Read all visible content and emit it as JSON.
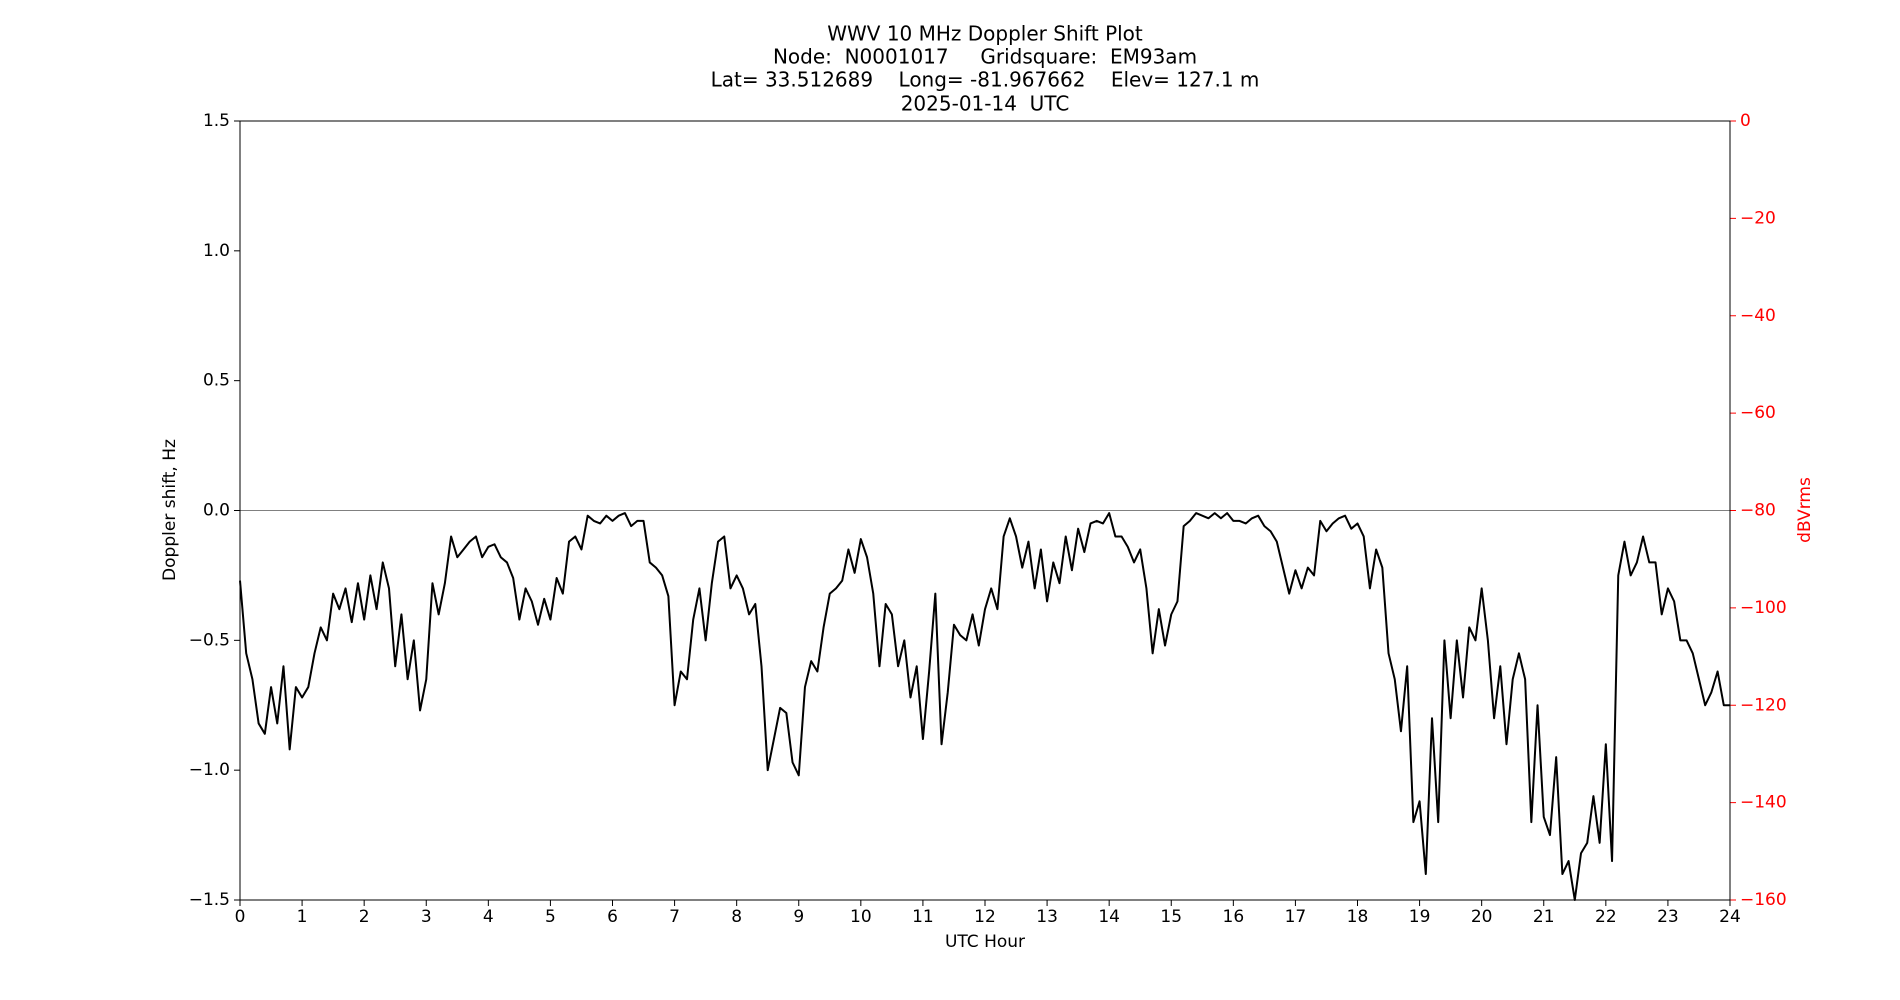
{
  "chart_data": {
    "type": "line",
    "title": [
      "WWV 10 MHz Doppler Shift Plot",
      "Node:  N0001017     Gridsquare:  EM93am",
      "Lat= 33.512689    Long= -81.967662    Elev= 127.1 m",
      "2025-01-14  UTC"
    ],
    "x_label": "UTC Hour",
    "y_label": "Doppler shift, Hz",
    "y2_label": "dBVrms",
    "color": "#000000",
    "y2_color": "#ff0000",
    "reference_line": 0,
    "reference_color": "#808080",
    "xlim": [
      0,
      24
    ],
    "xticks": [
      0,
      1,
      2,
      3,
      4,
      5,
      6,
      7,
      8,
      9,
      10,
      11,
      12,
      13,
      14,
      15,
      16,
      17,
      18,
      19,
      20,
      21,
      22,
      23,
      24
    ],
    "ylim": [
      -1.5,
      1.5
    ],
    "yticks": [
      {
        "value": -1.5,
        "label": "−1.5"
      },
      {
        "value": -1.0,
        "label": "−1.0"
      },
      {
        "value": -0.5,
        "label": "−0.5"
      },
      {
        "value": 0,
        "label": "0.0"
      },
      0.5,
      {
        "value": 1.0,
        "label": "1.0"
      },
      1.5
    ],
    "y2lim": [
      -160,
      0
    ],
    "y2ticks": [
      {
        "value": -160,
        "label": "−160"
      },
      {
        "value": -140,
        "label": "−140"
      },
      {
        "value": -120,
        "label": "−120"
      },
      {
        "value": -100,
        "label": "−100"
      },
      {
        "value": -80,
        "label": "−80"
      },
      {
        "value": -60,
        "label": "−60"
      },
      {
        "value": -40,
        "label": "−40"
      },
      {
        "value": -20,
        "label": "−20"
      },
      0
    ],
    "x": [
      0,
      0.1,
      0.2,
      0.3,
      0.4,
      0.5,
      0.6,
      0.7,
      0.8,
      0.9,
      1,
      1.1,
      1.2,
      1.3,
      1.4,
      1.5,
      1.6,
      1.7,
      1.8,
      1.9,
      2,
      2.1,
      2.2,
      2.3,
      2.4,
      2.5,
      2.6,
      2.7,
      2.8,
      2.9,
      3,
      3.1,
      3.2,
      3.3,
      3.4,
      3.5,
      3.6,
      3.7,
      3.8,
      3.9,
      4,
      4.1,
      4.2,
      4.3,
      4.4,
      4.5,
      4.6,
      4.7,
      4.8,
      4.9,
      5,
      5.1,
      5.2,
      5.3,
      5.4,
      5.5,
      5.6,
      5.7,
      5.8,
      5.9,
      6,
      6.1,
      6.2,
      6.3,
      6.4,
      6.5,
      6.6,
      6.7,
      6.8,
      6.9,
      7,
      7.1,
      7.2,
      7.3,
      7.4,
      7.5,
      7.6,
      7.7,
      7.8,
      7.9,
      8,
      8.1,
      8.2,
      8.3,
      8.4,
      8.5,
      8.6,
      8.7,
      8.8,
      8.9,
      9,
      9.1,
      9.2,
      9.3,
      9.4,
      9.5,
      9.6,
      9.7,
      9.8,
      9.9,
      10,
      10.1,
      10.2,
      10.3,
      10.4,
      10.5,
      10.6,
      10.7,
      10.8,
      10.9,
      11,
      11.1,
      11.2,
      11.3,
      11.4,
      11.5,
      11.6,
      11.7,
      11.8,
      11.9,
      12,
      12.1,
      12.2,
      12.3,
      12.4,
      12.5,
      12.6,
      12.7,
      12.8,
      12.9,
      13,
      13.1,
      13.2,
      13.3,
      13.4,
      13.5,
      13.6,
      13.7,
      13.8,
      13.9,
      14,
      14.1,
      14.2,
      14.3,
      14.4,
      14.5,
      14.6,
      14.7,
      14.8,
      14.9,
      15,
      15.1,
      15.2,
      15.3,
      15.4,
      15.5,
      15.6,
      15.7,
      15.8,
      15.9,
      16,
      16.1,
      16.2,
      16.3,
      16.4,
      16.5,
      16.6,
      16.7,
      16.8,
      16.9,
      17,
      17.1,
      17.2,
      17.3,
      17.4,
      17.5,
      17.6,
      17.7,
      17.8,
      17.9,
      18,
      18.1,
      18.2,
      18.3,
      18.4,
      18.5,
      18.6,
      18.7,
      18.8,
      18.9,
      19,
      19.1,
      19.2,
      19.3,
      19.4,
      19.5,
      19.6,
      19.7,
      19.8,
      19.9,
      20,
      20.1,
      20.2,
      20.3,
      20.4,
      20.5,
      20.6,
      20.7,
      20.8,
      20.9,
      21,
      21.1,
      21.2,
      21.3,
      21.4,
      21.5,
      21.6,
      21.7,
      21.8,
      21.9,
      22,
      22.1,
      22.2,
      22.3,
      22.4,
      22.5,
      22.6,
      22.7,
      22.8,
      22.9,
      23,
      23.1,
      23.2,
      23.3,
      23.4,
      23.5,
      23.6,
      23.7,
      23.8,
      23.9,
      24
    ],
    "values": [
      -0.27,
      -0.55,
      -0.65,
      -0.82,
      -0.86,
      -0.68,
      -0.82,
      -0.6,
      -0.92,
      -0.68,
      -0.72,
      -0.68,
      -0.55,
      -0.45,
      -0.5,
      -0.32,
      -0.38,
      -0.3,
      -0.43,
      -0.28,
      -0.42,
      -0.25,
      -0.38,
      -0.2,
      -0.3,
      -0.6,
      -0.4,
      -0.65,
      -0.5,
      -0.77,
      -0.65,
      -0.28,
      -0.4,
      -0.28,
      -0.1,
      -0.18,
      -0.15,
      -0.12,
      -0.1,
      -0.18,
      -0.14,
      -0.13,
      -0.18,
      -0.2,
      -0.26,
      -0.42,
      -0.3,
      -0.35,
      -0.44,
      -0.34,
      -0.42,
      -0.26,
      -0.32,
      -0.12,
      -0.1,
      -0.15,
      -0.02,
      -0.04,
      -0.05,
      -0.02,
      -0.04,
      -0.02,
      -0.01,
      -0.06,
      -0.04,
      -0.04,
      -0.2,
      -0.22,
      -0.25,
      -0.33,
      -0.75,
      -0.62,
      -0.65,
      -0.42,
      -0.3,
      -0.5,
      -0.28,
      -0.12,
      -0.1,
      -0.3,
      -0.25,
      -0.3,
      -0.4,
      -0.36,
      -0.6,
      -1.0,
      -0.88,
      -0.76,
      -0.78,
      -0.97,
      -1.02,
      -0.68,
      -0.58,
      -0.62,
      -0.45,
      -0.32,
      -0.3,
      -0.27,
      -0.15,
      -0.24,
      -0.11,
      -0.18,
      -0.32,
      -0.6,
      -0.36,
      -0.4,
      -0.6,
      -0.5,
      -0.72,
      -0.6,
      -0.88,
      -0.62,
      -0.32,
      -0.9,
      -0.7,
      -0.44,
      -0.48,
      -0.5,
      -0.4,
      -0.52,
      -0.38,
      -0.3,
      -0.38,
      -0.1,
      -0.03,
      -0.1,
      -0.22,
      -0.12,
      -0.3,
      -0.15,
      -0.35,
      -0.2,
      -0.28,
      -0.1,
      -0.23,
      -0.07,
      -0.16,
      -0.05,
      -0.04,
      -0.05,
      -0.01,
      -0.1,
      -0.1,
      -0.14,
      -0.2,
      -0.15,
      -0.3,
      -0.55,
      -0.38,
      -0.52,
      -0.4,
      -0.35,
      -0.06,
      -0.04,
      -0.01,
      -0.02,
      -0.03,
      -0.01,
      -0.03,
      -0.01,
      -0.04,
      -0.04,
      -0.05,
      -0.03,
      -0.02,
      -0.06,
      -0.08,
      -0.12,
      -0.22,
      -0.32,
      -0.23,
      -0.3,
      -0.22,
      -0.25,
      -0.04,
      -0.08,
      -0.05,
      -0.03,
      -0.02,
      -0.07,
      -0.05,
      -0.1,
      -0.3,
      -0.15,
      -0.22,
      -0.55,
      -0.65,
      -0.85,
      -0.6,
      -1.2,
      -1.12,
      -1.4,
      -0.8,
      -1.2,
      -0.5,
      -0.8,
      -0.5,
      -0.72,
      -0.45,
      -0.5,
      -0.3,
      -0.5,
      -0.8,
      -0.6,
      -0.9,
      -0.65,
      -0.55,
      -0.65,
      -1.2,
      -0.75,
      -1.18,
      -1.25,
      -0.95,
      -1.4,
      -1.35,
      -1.5,
      -1.32,
      -1.28,
      -1.1,
      -1.28,
      -0.9,
      -1.35,
      -0.25,
      -0.12,
      -0.25,
      -0.2,
      -0.1,
      -0.2,
      -0.2,
      -0.4,
      -0.3,
      -0.35,
      -0.5,
      -0.5,
      -0.55,
      -0.65,
      -0.75,
      -0.7,
      -0.62,
      -0.75,
      -0.75
    ]
  }
}
